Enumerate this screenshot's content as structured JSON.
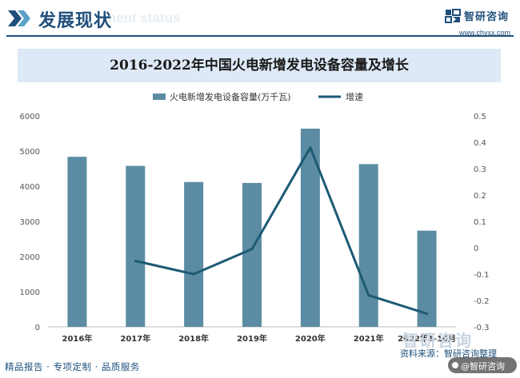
{
  "header": {
    "title": "发展现状",
    "watermark": "ment status",
    "brand_name": "智研咨询",
    "brand_url": "www.chyxx.com"
  },
  "chart_data": {
    "type": "bar",
    "title": "2016-2022年中国火电新增发电设备容量及增长",
    "categories": [
      "2016年",
      "2017年",
      "2018年",
      "2019年",
      "2020年",
      "2021年",
      "2022年1-10月"
    ],
    "series": [
      {
        "name": "火电新增发电设备容量(万千瓦)",
        "type": "bar",
        "axis": "left",
        "color": "#5c8ca3",
        "values": [
          4836,
          4578,
          4119,
          4092,
          5637,
          4628,
          2735
        ]
      },
      {
        "name": "增速",
        "type": "line",
        "axis": "right",
        "color": "#1d5a75",
        "values": [
          null,
          -0.05,
          -0.1,
          -0.005,
          0.38,
          -0.18,
          -0.25
        ]
      }
    ],
    "y_left": {
      "min": 0,
      "max": 6000,
      "ticks": [
        "0",
        "1000",
        "2000",
        "3000",
        "4000",
        "5000",
        "6000"
      ]
    },
    "y_right": {
      "min": -0.3,
      "max": 0.5,
      "ticks": [
        "-0.3",
        "-0.2",
        "-0.1",
        "0",
        "0.1",
        "0.2",
        "0.3",
        "0.4",
        "0.5"
      ]
    },
    "legend_position": "top-center",
    "grid": false
  },
  "footer": {
    "left_text": "精品报告 · 专项定制 · 品质服务",
    "source": "资料来源：智研咨询整理",
    "watermark": "智研咨询",
    "badge": "@智研咨询"
  }
}
